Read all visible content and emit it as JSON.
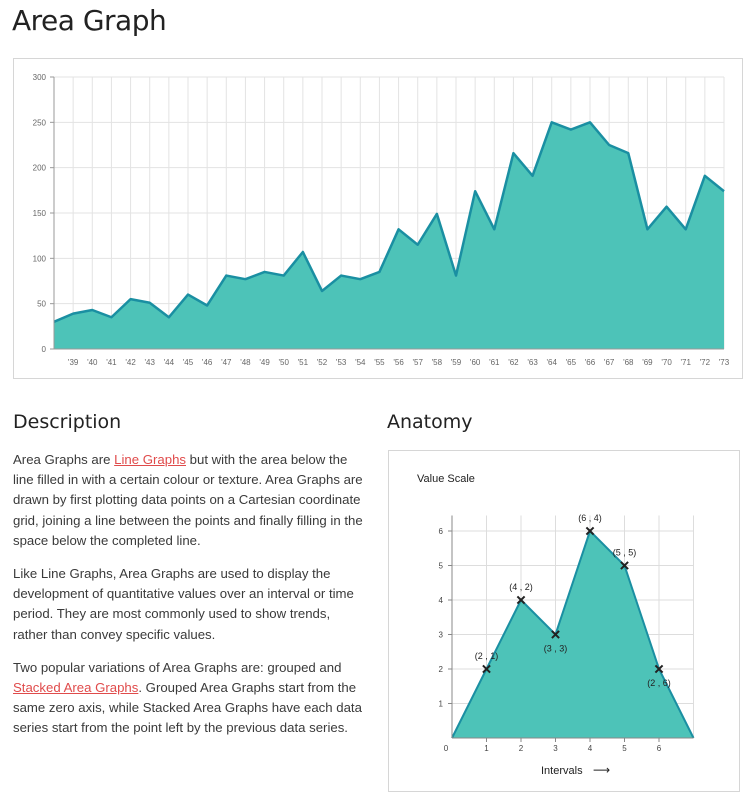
{
  "page": {
    "title": "Area Graph"
  },
  "main_chart": {
    "chart_data": {
      "type": "area",
      "x": [
        "",
        "'39",
        "'40",
        "'41",
        "'42",
        "'43",
        "'44",
        "'45",
        "'46",
        "'47",
        "'48",
        "'49",
        "'50",
        "'51",
        "'52",
        "'53",
        "'54",
        "'55",
        "'56",
        "'57",
        "'58",
        "'59",
        "'60",
        "'61",
        "'62",
        "'63",
        "'64",
        "'65",
        "'66",
        "'67",
        "'68",
        "'69",
        "'70",
        "'71",
        "'72",
        "'73"
      ],
      "values": [
        30,
        39,
        43,
        35,
        55,
        51,
        35,
        60,
        48,
        81,
        77,
        85,
        81,
        107,
        64,
        81,
        77,
        85,
        132,
        115,
        149,
        81,
        174,
        132,
        216,
        191,
        250,
        242,
        250,
        225,
        216,
        132,
        157,
        132,
        191,
        174
      ],
      "ylim": [
        0,
        300
      ],
      "yticks": [
        "0",
        "50",
        "100",
        "150",
        "200",
        "250",
        "300"
      ],
      "grid": true,
      "colors": {
        "fill": "#4dc3b8",
        "line": "#1a8fa2",
        "grid": "#e3e3e3"
      }
    }
  },
  "description": {
    "title": "Description",
    "p1_before": "Area Graphs are ",
    "p1_link": "Line Graphs",
    "p1_after": " but with the area below the line filled in with a certain colour or texture. Area Graphs are drawn by first plotting data points on a Cartesian coordinate grid, joining a line between the points and finally filling in the space below the completed line.",
    "p2": "Like Line Graphs, Area Graphs are used to display the development of quantitative values over an interval or time period. They are most commonly used to show trends, rather than convey specific values.",
    "p3_before": "Two popular variations of Area Graphs are: grouped and ",
    "p3_link": "Stacked Area Graphs",
    "p3_after": ". Grouped Area Graphs start from the same zero axis, while Stacked Area Graphs have each data series start from the point left by the previous data series."
  },
  "anatomy": {
    "title": "Anatomy",
    "value_scale_label": "Value Scale",
    "intervals_label": "Intervals",
    "arrow": "⟶",
    "chart_data": {
      "type": "area",
      "x": [
        0,
        1,
        2,
        3,
        4,
        5,
        6,
        7
      ],
      "y": [
        0,
        2,
        4,
        3,
        6,
        5,
        2,
        0
      ],
      "xticks": [
        "0",
        "1",
        "2",
        "3",
        "4",
        "5",
        "6"
      ],
      "yticks": [
        "1",
        "2",
        "3",
        "4",
        "5",
        "6"
      ],
      "points": [
        {
          "x": 1,
          "y": 2,
          "label": "(2 , 1)",
          "label_pos": "above"
        },
        {
          "x": 2,
          "y": 4,
          "label": "(4 , 2)",
          "label_pos": "above"
        },
        {
          "x": 3,
          "y": 3,
          "label": "(3 , 3)",
          "label_pos": "below"
        },
        {
          "x": 4,
          "y": 6,
          "label": "(6 , 4)",
          "label_pos": "above"
        },
        {
          "x": 5,
          "y": 5,
          "label": "(5 , 5)",
          "label_pos": "above"
        },
        {
          "x": 6,
          "y": 2,
          "label": "(2 , 6)",
          "label_pos": "below"
        }
      ],
      "colors": {
        "fill": "#4dc3b8",
        "line": "#1a8fa2",
        "grid": "#dddddd",
        "marker": "#222222"
      }
    }
  }
}
